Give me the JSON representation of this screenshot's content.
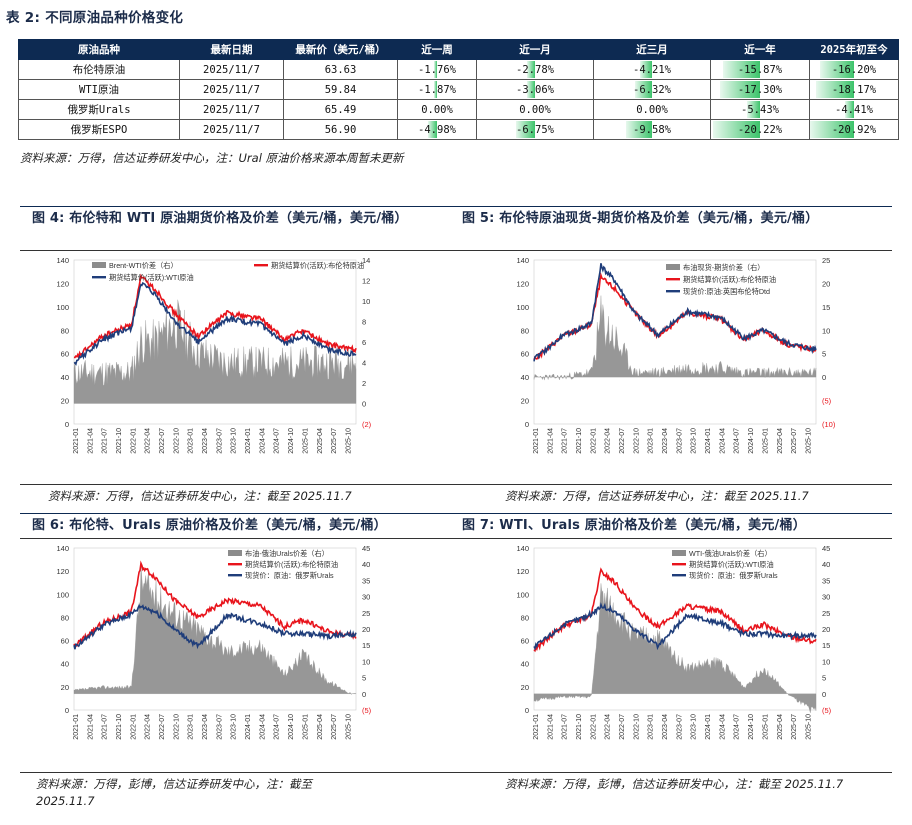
{
  "table": {
    "title": "表 2:  不同原油品种价格变化",
    "headers": [
      "原油品种",
      "最新日期",
      "最新价（美元/桶）",
      "近一周",
      "近一月",
      "近三月",
      "近一年",
      "2025年初至今"
    ],
    "rows": [
      {
        "name": "布伦特原油",
        "date": "2025/11/7",
        "price": "63.63",
        "changes": [
          "-1.76%",
          "-2.78%",
          "-4.21%",
          "-15.87%",
          "-16.20%"
        ],
        "pct": [
          -1.76,
          -2.78,
          -4.21,
          -15.87,
          -16.2
        ]
      },
      {
        "name": "WTI原油",
        "date": "2025/11/7",
        "price": "59.84",
        "changes": [
          "-1.87%",
          "-3.06%",
          "-6.32%",
          "-17.30%",
          "-18.17%"
        ],
        "pct": [
          -1.87,
          -3.06,
          -6.32,
          -17.3,
          -18.17
        ]
      },
      {
        "name": "俄罗斯Urals",
        "date": "2025/11/7",
        "price": "65.49",
        "changes": [
          "0.00%",
          "0.00%",
          "0.00%",
          "-5.43%",
          "-4.41%"
        ],
        "pct": [
          0,
          0,
          0,
          -5.43,
          -4.41
        ]
      },
      {
        "name": "俄罗斯ESPO",
        "date": "2025/11/7",
        "price": "56.90",
        "changes": [
          "-4.98%",
          "-6.75%",
          "-9.58%",
          "-20.22%",
          "-20.92%"
        ],
        "pct": [
          -4.98,
          -6.75,
          -9.58,
          -20.22,
          -20.92
        ]
      }
    ],
    "source": "资料来源：万得，信达证券研发中心，注：Ural 原油价格来源本周暂未更新"
  },
  "colors": {
    "red": "#e8141c",
    "navy": "#1f3d7a",
    "gray": "#8c8c8c",
    "green": "#3cc36a",
    "header": "#0d2a52"
  },
  "figures": [
    {
      "id": "fig4",
      "title": "图 4:  布伦特和  WTI  原油期货价格及价差（美元/桶，美元/桶）",
      "source": "资料来源：万得，信达证券研发中心，注：截至 2025.11.7",
      "legend": [
        "Brent-WTI价差（右）",
        "期货结算价(活跃):布伦特原油",
        "期货结算价(活跃):WTI原油"
      ],
      "left_ticks": [
        "0",
        "20",
        "40",
        "60",
        "80",
        "100",
        "120",
        "140"
      ],
      "right_ticks": [
        "(2)",
        "0",
        "2",
        "4",
        "6",
        "8",
        "10",
        "12",
        "14"
      ],
      "x_ticks": [
        "2021-01",
        "2021-04",
        "2021-07",
        "2021-10",
        "2022-01",
        "2022-04",
        "2022-07",
        "2022-10",
        "2023-01",
        "2023-04",
        "2023-07",
        "2023-10",
        "2024-01",
        "2024-04",
        "2024-07",
        "2024-10",
        "2025-01",
        "2025-04",
        "2025-07",
        "2025-10"
      ]
    },
    {
      "id": "fig5",
      "title": "图 5:  布伦特原油现货-期货价格及价差（美元/桶，美元/桶）",
      "source": "资料来源：万得，信达证券研发中心，注：截至 2025.11.7",
      "legend": [
        "布油现货-期货价差（右）",
        "期货结算价(活跃):布伦特原油",
        "现货价:原油:英国布伦特Dtd"
      ],
      "left_ticks": [
        "0",
        "20",
        "40",
        "60",
        "80",
        "100",
        "120",
        "140"
      ],
      "right_ticks": [
        "(10)",
        "(5)",
        "0",
        "5",
        "10",
        "15",
        "20",
        "25"
      ],
      "x_ticks": [
        "2021-01",
        "2021-04",
        "2021-07",
        "2021-10",
        "2022-01",
        "2022-04",
        "2022-07",
        "2022-10",
        "2023-01",
        "2023-04",
        "2023-07",
        "2023-10",
        "2024-01",
        "2024-04",
        "2024-07",
        "2024-10",
        "2025-01",
        "2025-04",
        "2025-07",
        "2025-10"
      ]
    },
    {
      "id": "fig6",
      "title": "图 6:  布伦特、Urals 原油价格及价差（美元/桶，美元/桶）",
      "source_lines": [
        "资料来源：万得，彭博，信达证券研发中心，注：截至",
        "2025.11.7"
      ],
      "legend": [
        "布油-俄油Urals价差（右）",
        "期货结算价(活跃):布伦特原油",
        "现货价：原油：俄罗斯Urals"
      ],
      "left_ticks": [
        "0",
        "20",
        "40",
        "60",
        "80",
        "100",
        "120",
        "140"
      ],
      "right_ticks": [
        "(5)",
        "0",
        "5",
        "10",
        "15",
        "20",
        "25",
        "30",
        "35",
        "40",
        "45"
      ],
      "x_ticks": [
        "2021-01",
        "2021-04",
        "2021-07",
        "2021-10",
        "2022-01",
        "2022-04",
        "2022-07",
        "2022-10",
        "2023-01",
        "2023-04",
        "2023-07",
        "2023-10",
        "2024-01",
        "2024-04",
        "2024-07",
        "2024-10",
        "2025-01",
        "2025-04",
        "2025-07",
        "2025-10"
      ]
    },
    {
      "id": "fig7",
      "title": "图 7:  WTI、Urals 原油价格及价差（美元/桶，美元/桶）",
      "source": "资料来源：万得，彭博，信达证券研发中心，注：截至 2025.11.7",
      "legend": [
        "WTI-俄油Urals价差（右）",
        "期货结算价(活跃):WTI原油",
        "现货价：原油：俄罗斯Urals"
      ],
      "left_ticks": [
        "0",
        "20",
        "40",
        "60",
        "80",
        "100",
        "120",
        "140"
      ],
      "right_ticks": [
        "(5)",
        "0",
        "5",
        "10",
        "15",
        "20",
        "25",
        "30",
        "35",
        "40",
        "45"
      ],
      "x_ticks": [
        "2021-01",
        "2021-04",
        "2021-07",
        "2021-10",
        "2022-01",
        "2022-04",
        "2022-07",
        "2022-10",
        "2023-01",
        "2023-04",
        "2023-07",
        "2023-10",
        "2024-01",
        "2024-04",
        "2024-07",
        "2024-10",
        "2025-01",
        "2025-04",
        "2025-07",
        "2025-10"
      ]
    }
  ],
  "chart_data": [
    {
      "type": "line",
      "id": "fig4",
      "title": "布伦特和 WTI 原油期货价格及价差",
      "x": [
        "2021-01",
        "2021-07",
        "2022-01",
        "2022-03",
        "2022-06",
        "2022-10",
        "2023-03",
        "2023-09",
        "2024-04",
        "2024-09",
        "2025-01",
        "2025-06",
        "2025-11"
      ],
      "series": [
        {
          "name": "期货结算价(活跃):布伦特原油",
          "values": [
            55,
            75,
            85,
            125,
            115,
            95,
            75,
            95,
            90,
            72,
            80,
            68,
            64
          ]
        },
        {
          "name": "期货结算价(活跃):WTI原油",
          "values": [
            52,
            72,
            82,
            120,
            110,
            88,
            70,
            90,
            85,
            68,
            76,
            64,
            60
          ]
        },
        {
          "name": "Brent-WTI价差（右）",
          "values": [
            3,
            3,
            3,
            6,
            6,
            8,
            5,
            4,
            4,
            4,
            4,
            4,
            4
          ]
        }
      ],
      "ylim": [
        0,
        140
      ],
      "y2lim": [
        -2,
        14
      ]
    },
    {
      "type": "line",
      "id": "fig5",
      "title": "布伦特原油现货-期货价格及价差",
      "x": [
        "2021-01",
        "2021-07",
        "2022-01",
        "2022-03",
        "2022-06",
        "2022-10",
        "2023-03",
        "2023-09",
        "2024-04",
        "2024-09",
        "2025-01",
        "2025-06",
        "2025-11"
      ],
      "series": [
        {
          "name": "期货结算价(活跃):布伦特原油",
          "values": [
            55,
            75,
            85,
            125,
            115,
            95,
            75,
            95,
            90,
            72,
            80,
            68,
            64
          ]
        },
        {
          "name": "现货价:原油:英国布伦特Dtd",
          "values": [
            55,
            75,
            86,
            135,
            122,
            95,
            76,
            96,
            91,
            73,
            80,
            69,
            64
          ]
        },
        {
          "name": "布油现货-期货价差（右）",
          "values": [
            0,
            0,
            1,
            12,
            8,
            1,
            1,
            2,
            2,
            1,
            1,
            1,
            1
          ]
        }
      ],
      "ylim": [
        0,
        140
      ],
      "y2lim": [
        -10,
        25
      ]
    },
    {
      "type": "line",
      "id": "fig6",
      "title": "布伦特、Urals 原油价格及价差",
      "x": [
        "2021-01",
        "2021-07",
        "2022-01",
        "2022-03",
        "2022-06",
        "2022-10",
        "2023-03",
        "2023-09",
        "2024-04",
        "2024-09",
        "2025-01",
        "2025-06",
        "2025-11"
      ],
      "series": [
        {
          "name": "期货结算价(活跃):布伦特原油",
          "values": [
            55,
            75,
            85,
            125,
            115,
            95,
            80,
            95,
            90,
            72,
            78,
            68,
            64
          ]
        },
        {
          "name": "现货价：原油：俄罗斯Urals",
          "values": [
            54,
            73,
            83,
            90,
            85,
            70,
            55,
            82,
            75,
            66,
            66,
            64,
            65
          ]
        },
        {
          "name": "布油-俄油Urals价差（右）",
          "values": [
            1,
            2,
            2,
            35,
            30,
            25,
            20,
            13,
            15,
            6,
            12,
            4,
            0
          ]
        }
      ],
      "ylim": [
        0,
        140
      ],
      "y2lim": [
        -5,
        45
      ]
    },
    {
      "type": "line",
      "id": "fig7",
      "title": "WTI、Urals 原油价格及价差",
      "x": [
        "2021-01",
        "2021-07",
        "2022-01",
        "2022-03",
        "2022-06",
        "2022-10",
        "2023-03",
        "2023-09",
        "2024-04",
        "2024-09",
        "2025-01",
        "2025-06",
        "2025-11"
      ],
      "series": [
        {
          "name": "期货结算价(活跃):WTI原油",
          "values": [
            52,
            72,
            82,
            120,
            110,
            88,
            72,
            90,
            85,
            68,
            74,
            64,
            60
          ]
        },
        {
          "name": "现货价：原油：俄罗斯Urals",
          "values": [
            54,
            73,
            83,
            90,
            85,
            70,
            55,
            82,
            75,
            66,
            66,
            64,
            65
          ]
        },
        {
          "name": "WTI-俄油Urals价差（右）",
          "values": [
            -2,
            -1,
            -1,
            30,
            25,
            18,
            17,
            8,
            10,
            2,
            8,
            0,
            -5
          ]
        }
      ],
      "ylim": [
        0,
        140
      ],
      "y2lim": [
        -5,
        45
      ]
    }
  ]
}
